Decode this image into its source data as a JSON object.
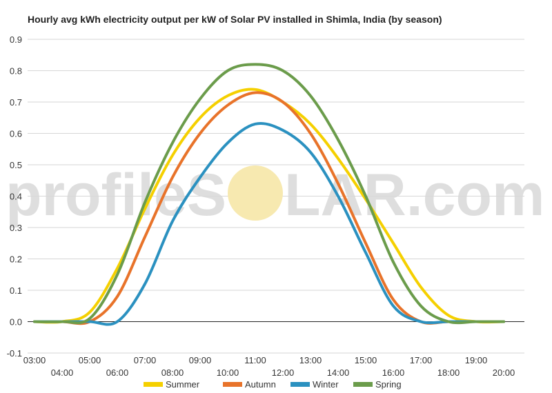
{
  "chart_data": {
    "type": "line",
    "title": "Hourly avg kWh electricity output per kW of Solar PV installed in Shimla, India (by season)",
    "xlabel": "",
    "ylabel": "",
    "ylim": [
      -0.1,
      0.9
    ],
    "yticks": [
      "-0.1",
      "0.0",
      "0.1",
      "0.2",
      "0.3",
      "0.4",
      "0.5",
      "0.6",
      "0.7",
      "0.8",
      "0.9"
    ],
    "xticks": [
      "03:00",
      "04:00",
      "05:00",
      "06:00",
      "07:00",
      "08:00",
      "09:00",
      "10:00",
      "11:00",
      "12:00",
      "13:00",
      "14:00",
      "15:00",
      "16:00",
      "17:00",
      "18:00",
      "19:00",
      "20:00"
    ],
    "grid": true,
    "legend_position": "bottom",
    "series": [
      {
        "name": "Summer",
        "color": "#f5d000",
        "x": [
          3,
          4,
          5,
          6,
          7,
          8,
          9,
          10,
          11,
          12,
          13,
          14,
          15,
          16,
          17,
          18,
          19,
          20
        ],
        "values": [
          0.0,
          0.0,
          0.03,
          0.17,
          0.36,
          0.53,
          0.65,
          0.72,
          0.74,
          0.7,
          0.63,
          0.52,
          0.39,
          0.25,
          0.11,
          0.02,
          0.0,
          0.0
        ]
      },
      {
        "name": "Autumn",
        "color": "#e8732a",
        "x": [
          3,
          4,
          5,
          6,
          7,
          8,
          9,
          10,
          11,
          12,
          13,
          14,
          15,
          16,
          17,
          18,
          19,
          20
        ],
        "values": [
          0.0,
          0.0,
          0.0,
          0.08,
          0.27,
          0.46,
          0.6,
          0.69,
          0.73,
          0.7,
          0.6,
          0.44,
          0.25,
          0.07,
          0.0,
          0.0,
          0.0,
          0.0
        ]
      },
      {
        "name": "Winter",
        "color": "#2b91c0",
        "x": [
          3,
          4,
          5,
          6,
          7,
          8,
          9,
          10,
          11,
          12,
          13,
          14,
          15,
          16,
          17,
          18,
          19,
          20
        ],
        "values": [
          0.0,
          0.0,
          0.0,
          0.0,
          0.12,
          0.32,
          0.46,
          0.57,
          0.63,
          0.61,
          0.54,
          0.4,
          0.22,
          0.05,
          0.0,
          0.0,
          0.0,
          0.0
        ]
      },
      {
        "name": "Spring",
        "color": "#6b9c4b",
        "x": [
          3,
          4,
          5,
          6,
          7,
          8,
          9,
          10,
          11,
          12,
          13,
          14,
          15,
          16,
          17,
          18,
          19,
          20
        ],
        "values": [
          0.0,
          0.0,
          0.01,
          0.15,
          0.38,
          0.57,
          0.71,
          0.8,
          0.82,
          0.8,
          0.72,
          0.58,
          0.4,
          0.19,
          0.05,
          0.0,
          0.0,
          0.0
        ]
      }
    ]
  },
  "watermark": {
    "left_text": "profileS",
    "right_text": "LAR.com",
    "sun_color": "#f7e9b0"
  }
}
